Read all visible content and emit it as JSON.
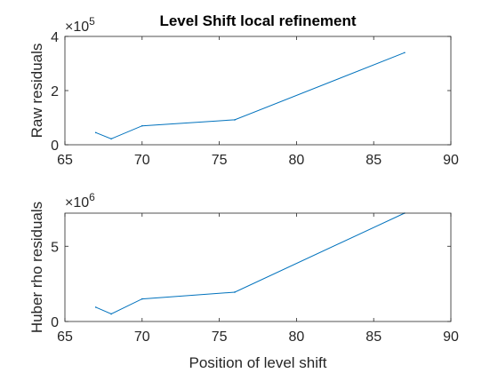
{
  "chart_data": [
    {
      "type": "line",
      "title": "Level Shift local refinement",
      "xlabel": "",
      "ylabel": "Raw residuals",
      "xlim": [
        65,
        90
      ],
      "ylim": [
        0,
        4
      ],
      "xticks": [
        "65",
        "70",
        "75",
        "80",
        "85",
        "90"
      ],
      "yticks": [
        "0",
        "2",
        "4"
      ],
      "y_multiplier_base": "×10",
      "y_multiplier_exp": "5",
      "grid": false,
      "color": "#0072BD",
      "x": [
        67,
        68,
        70,
        76,
        87
      ],
      "values": [
        0.45,
        0.22,
        0.7,
        0.92,
        3.4
      ]
    },
    {
      "type": "line",
      "title": "",
      "xlabel": "Position of level shift",
      "ylabel": "Huber rho residuals",
      "xlim": [
        65,
        90
      ],
      "ylim": [
        0,
        7.2
      ],
      "xticks": [
        "65",
        "70",
        "75",
        "80",
        "85",
        "90"
      ],
      "yticks": [
        "0",
        "5"
      ],
      "y_multiplier_base": "×10",
      "y_multiplier_exp": "6",
      "grid": false,
      "color": "#0072BD",
      "x": [
        67,
        68,
        70,
        76,
        87
      ],
      "values": [
        0.95,
        0.5,
        1.5,
        1.95,
        7.2
      ]
    }
  ]
}
